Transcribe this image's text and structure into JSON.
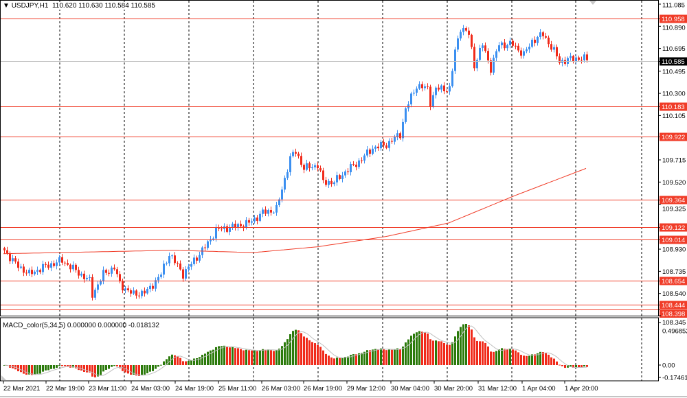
{
  "header": {
    "symbol": "USDJPY,H1",
    "open": "110.620",
    "high": "110.630",
    "low": "110.584",
    "close": "110.585"
  },
  "macd": {
    "label": "MACD_color(5,34,5) 0.000000 0.000000 -0.018132",
    "ticks": [
      "0.496852",
      "0.00",
      "-0.17461"
    ]
  },
  "colors": {
    "up": "#3b8ff0",
    "down": "#f02a1a",
    "level": "#f03c28",
    "ma": "#f03c28",
    "hist_up": "#2b7a0b",
    "hist_down": "#f02a1a",
    "signal": "#c0c0c0"
  },
  "chart_data": {
    "type": "candlestick",
    "ylim": [
      108.345,
      111.085
    ],
    "price_ticks": [
      "111.085",
      "110.890",
      "110.695",
      "110.495",
      "110.300",
      "110.105",
      "109.715",
      "109.520",
      "109.325",
      "108.930",
      "108.735",
      "108.540",
      "108.345"
    ],
    "current_price": "110.585",
    "levels": [
      "110.958",
      "110.183",
      "109.922",
      "109.364",
      "109.122",
      "109.014",
      "108.654",
      "108.444",
      "108.398"
    ],
    "time_labels": [
      "22 Mar 2021",
      "22 Mar 19:00",
      "23 Mar 11:00",
      "24 Mar 03:00",
      "24 Mar 19:00",
      "25 Mar 11:00",
      "26 Mar 03:00",
      "26 Mar 19:00",
      "29 Mar 12:00",
      "30 Mar 04:00",
      "30 Mar 20:00",
      "31 Mar 12:00",
      "1 Apr 04:00",
      "1 Apr 20:00"
    ],
    "bar_count": 213,
    "close_anchors": [
      [
        0,
        108.92
      ],
      [
        4,
        108.8
      ],
      [
        9,
        108.71
      ],
      [
        14,
        108.77
      ],
      [
        21,
        108.83
      ],
      [
        26,
        108.74
      ],
      [
        31,
        108.65
      ],
      [
        32,
        108.53
      ],
      [
        36,
        108.71
      ],
      [
        40,
        108.77
      ],
      [
        42,
        108.62
      ],
      [
        47,
        108.53
      ],
      [
        52,
        108.56
      ],
      [
        57,
        108.71
      ],
      [
        60,
        108.89
      ],
      [
        65,
        108.71
      ],
      [
        69,
        108.83
      ],
      [
        74,
        108.98
      ],
      [
        77,
        109.1
      ],
      [
        84,
        109.13
      ],
      [
        89,
        109.16
      ],
      [
        94,
        109.25
      ],
      [
        99,
        109.28
      ],
      [
        101,
        109.46
      ],
      [
        104,
        109.73
      ],
      [
        106,
        109.79
      ],
      [
        109,
        109.64
      ],
      [
        114,
        109.67
      ],
      [
        116,
        109.52
      ],
      [
        120,
        109.52
      ],
      [
        124,
        109.61
      ],
      [
        129,
        109.7
      ],
      [
        134,
        109.82
      ],
      [
        139,
        109.85
      ],
      [
        144,
        109.94
      ],
      [
        146,
        110.16
      ],
      [
        150,
        110.37
      ],
      [
        154,
        110.34
      ],
      [
        155,
        110.22
      ],
      [
        157,
        110.34
      ],
      [
        162,
        110.34
      ],
      [
        164,
        110.67
      ],
      [
        166,
        110.88
      ],
      [
        169,
        110.82
      ],
      [
        171,
        110.55
      ],
      [
        174,
        110.73
      ],
      [
        177,
        110.52
      ],
      [
        180,
        110.73
      ],
      [
        185,
        110.73
      ],
      [
        189,
        110.64
      ],
      [
        192,
        110.76
      ],
      [
        196,
        110.82
      ],
      [
        200,
        110.67
      ],
      [
        202,
        110.58
      ],
      [
        208,
        110.61
      ],
      [
        212,
        110.6
      ]
    ],
    "ma_anchors": [
      [
        0,
        108.89
      ],
      [
        62,
        108.92
      ],
      [
        91,
        108.9
      ],
      [
        114,
        108.95
      ],
      [
        139,
        109.04
      ],
      [
        162,
        109.16
      ],
      [
        186,
        109.4
      ],
      [
        212,
        109.64
      ]
    ]
  }
}
